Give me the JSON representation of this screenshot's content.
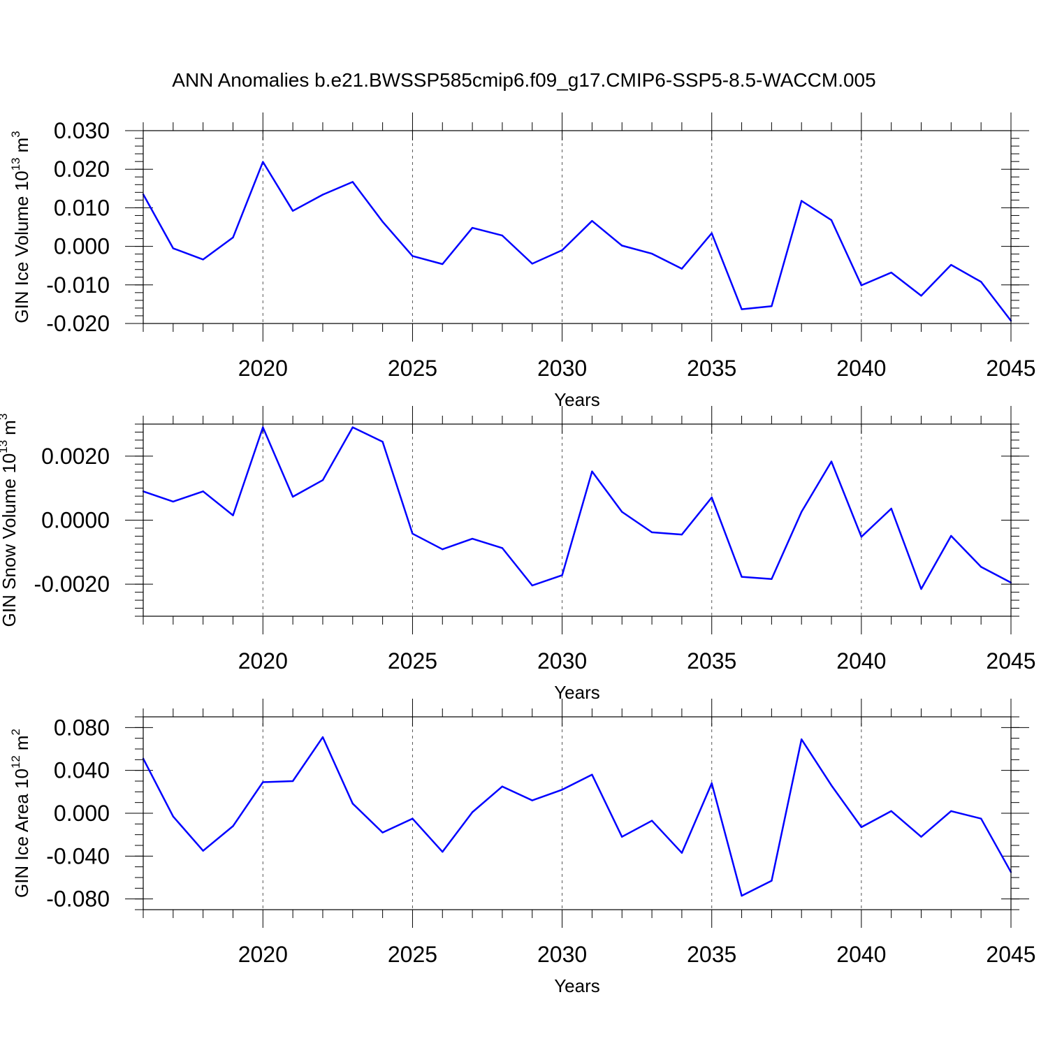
{
  "figure_title": "ANN Anomalies b.e21.BWSSP585cmip6.f09_g17.CMIP6-SSP5-8.5-WACCM.005",
  "chart_data": [
    {
      "type": "line",
      "title": "ANN Anomalies b.e21.BWSSP585cmip6.f09_g17.CMIP6-SSP5-8.5-WACCM.005",
      "xlabel": "Years",
      "ylabel_main": "GIN Ice Volume 10",
      "ylabel_exp": "13",
      "ylabel_unit": "m",
      "ylabel_unit_exp": "3",
      "xlim": [
        2016,
        2045
      ],
      "ylim": [
        -0.02,
        0.03
      ],
      "yticks": [
        0.03,
        0.02,
        0.01,
        0.0,
        -0.01,
        -0.02
      ],
      "ytick_labels": [
        "0.030",
        "0.020",
        "0.010",
        "0.000",
        "-0.010",
        "-0.020"
      ],
      "xticks": [
        2020,
        2025,
        2030,
        2035,
        2040,
        2045
      ],
      "xtick_labels": [
        "2020",
        "2025",
        "2030",
        "2035",
        "2040",
        "2045"
      ],
      "series": [
        {
          "name": "GIN Ice Volume",
          "color": "#0000ff",
          "x": [
            2016,
            2017,
            2018,
            2019,
            2020,
            2021,
            2022,
            2023,
            2024,
            2025,
            2026,
            2027,
            2028,
            2029,
            2030,
            2031,
            2032,
            2033,
            2034,
            2035,
            2036,
            2037,
            2038,
            2039,
            2040,
            2041,
            2042,
            2043,
            2044,
            2045
          ],
          "values": [
            0.0135,
            -0.0005,
            -0.0034,
            0.0023,
            0.0219,
            0.0092,
            0.0134,
            0.0167,
            0.0064,
            -0.0025,
            -0.0046,
            0.0048,
            0.0028,
            -0.0045,
            -0.001,
            0.0066,
            0.0002,
            -0.0019,
            -0.0058,
            0.0034,
            -0.0163,
            -0.0155,
            0.0118,
            0.0068,
            -0.0101,
            -0.0068,
            -0.0128,
            -0.0048,
            -0.0092,
            -0.0193
          ]
        }
      ]
    },
    {
      "type": "line",
      "xlabel": "Years",
      "ylabel_main": "GIN Snow Volume 10",
      "ylabel_exp": "13",
      "ylabel_unit": "m",
      "ylabel_unit_exp": "3",
      "xlim": [
        2016,
        2045
      ],
      "ylim": [
        -0.003,
        0.003
      ],
      "yticks": [
        0.002,
        0.0,
        -0.002
      ],
      "ytick_labels": [
        "0.0020",
        "0.0000",
        "-0.0020"
      ],
      "xticks": [
        2020,
        2025,
        2030,
        2035,
        2040,
        2045
      ],
      "xtick_labels": [
        "2020",
        "2025",
        "2030",
        "2035",
        "2040",
        "2045"
      ],
      "series": [
        {
          "name": "GIN Snow Volume",
          "color": "#0000ff",
          "x": [
            2016,
            2017,
            2018,
            2019,
            2020,
            2021,
            2022,
            2023,
            2024,
            2025,
            2026,
            2027,
            2028,
            2029,
            2030,
            2031,
            2032,
            2033,
            2034,
            2035,
            2036,
            2037,
            2038,
            2039,
            2040,
            2041,
            2042,
            2043,
            2044,
            2045
          ],
          "values": [
            0.0009,
            0.00058,
            0.0009,
            0.00015,
            0.0029,
            0.00073,
            0.00125,
            0.0029,
            0.00245,
            -0.00042,
            -0.00091,
            -0.00058,
            -0.00087,
            -0.00204,
            -0.00172,
            0.00152,
            0.00026,
            -0.00038,
            -0.00045,
            0.00071,
            -0.00177,
            -0.00184,
            0.00026,
            0.00183,
            -0.00052,
            0.00036,
            -0.00215,
            -0.00049,
            -0.00146,
            -0.00195
          ]
        }
      ]
    },
    {
      "type": "line",
      "xlabel": "Years",
      "ylabel_main": "GIN Ice Area 10",
      "ylabel_exp": "12",
      "ylabel_unit": "m",
      "ylabel_unit_exp": "2",
      "xlim": [
        2016,
        2045
      ],
      "ylim": [
        -0.09,
        0.09
      ],
      "yticks": [
        0.08,
        0.04,
        0.0,
        -0.04,
        -0.08
      ],
      "ytick_labels": [
        "0.080",
        "0.040",
        "0.000",
        "-0.040",
        "-0.080"
      ],
      "xticks": [
        2020,
        2025,
        2030,
        2035,
        2040,
        2045
      ],
      "xtick_labels": [
        "2020",
        "2025",
        "2030",
        "2035",
        "2040",
        "2045"
      ],
      "series": [
        {
          "name": "GIN Ice Area",
          "color": "#0000ff",
          "x": [
            2016,
            2017,
            2018,
            2019,
            2020,
            2021,
            2022,
            2023,
            2024,
            2025,
            2026,
            2027,
            2028,
            2029,
            2030,
            2031,
            2032,
            2033,
            2034,
            2035,
            2036,
            2037,
            2038,
            2039,
            2040,
            2041,
            2042,
            2043,
            2044,
            2045
          ],
          "values": [
            0.051,
            -0.003,
            -0.035,
            -0.012,
            0.029,
            0.03,
            0.071,
            0.009,
            -0.018,
            -0.005,
            -0.036,
            0.001,
            0.025,
            0.012,
            0.022,
            0.036,
            -0.022,
            -0.007,
            -0.037,
            0.028,
            -0.077,
            -0.063,
            0.069,
            0.026,
            -0.013,
            0.002,
            -0.022,
            0.002,
            -0.005,
            -0.055
          ]
        }
      ]
    }
  ]
}
